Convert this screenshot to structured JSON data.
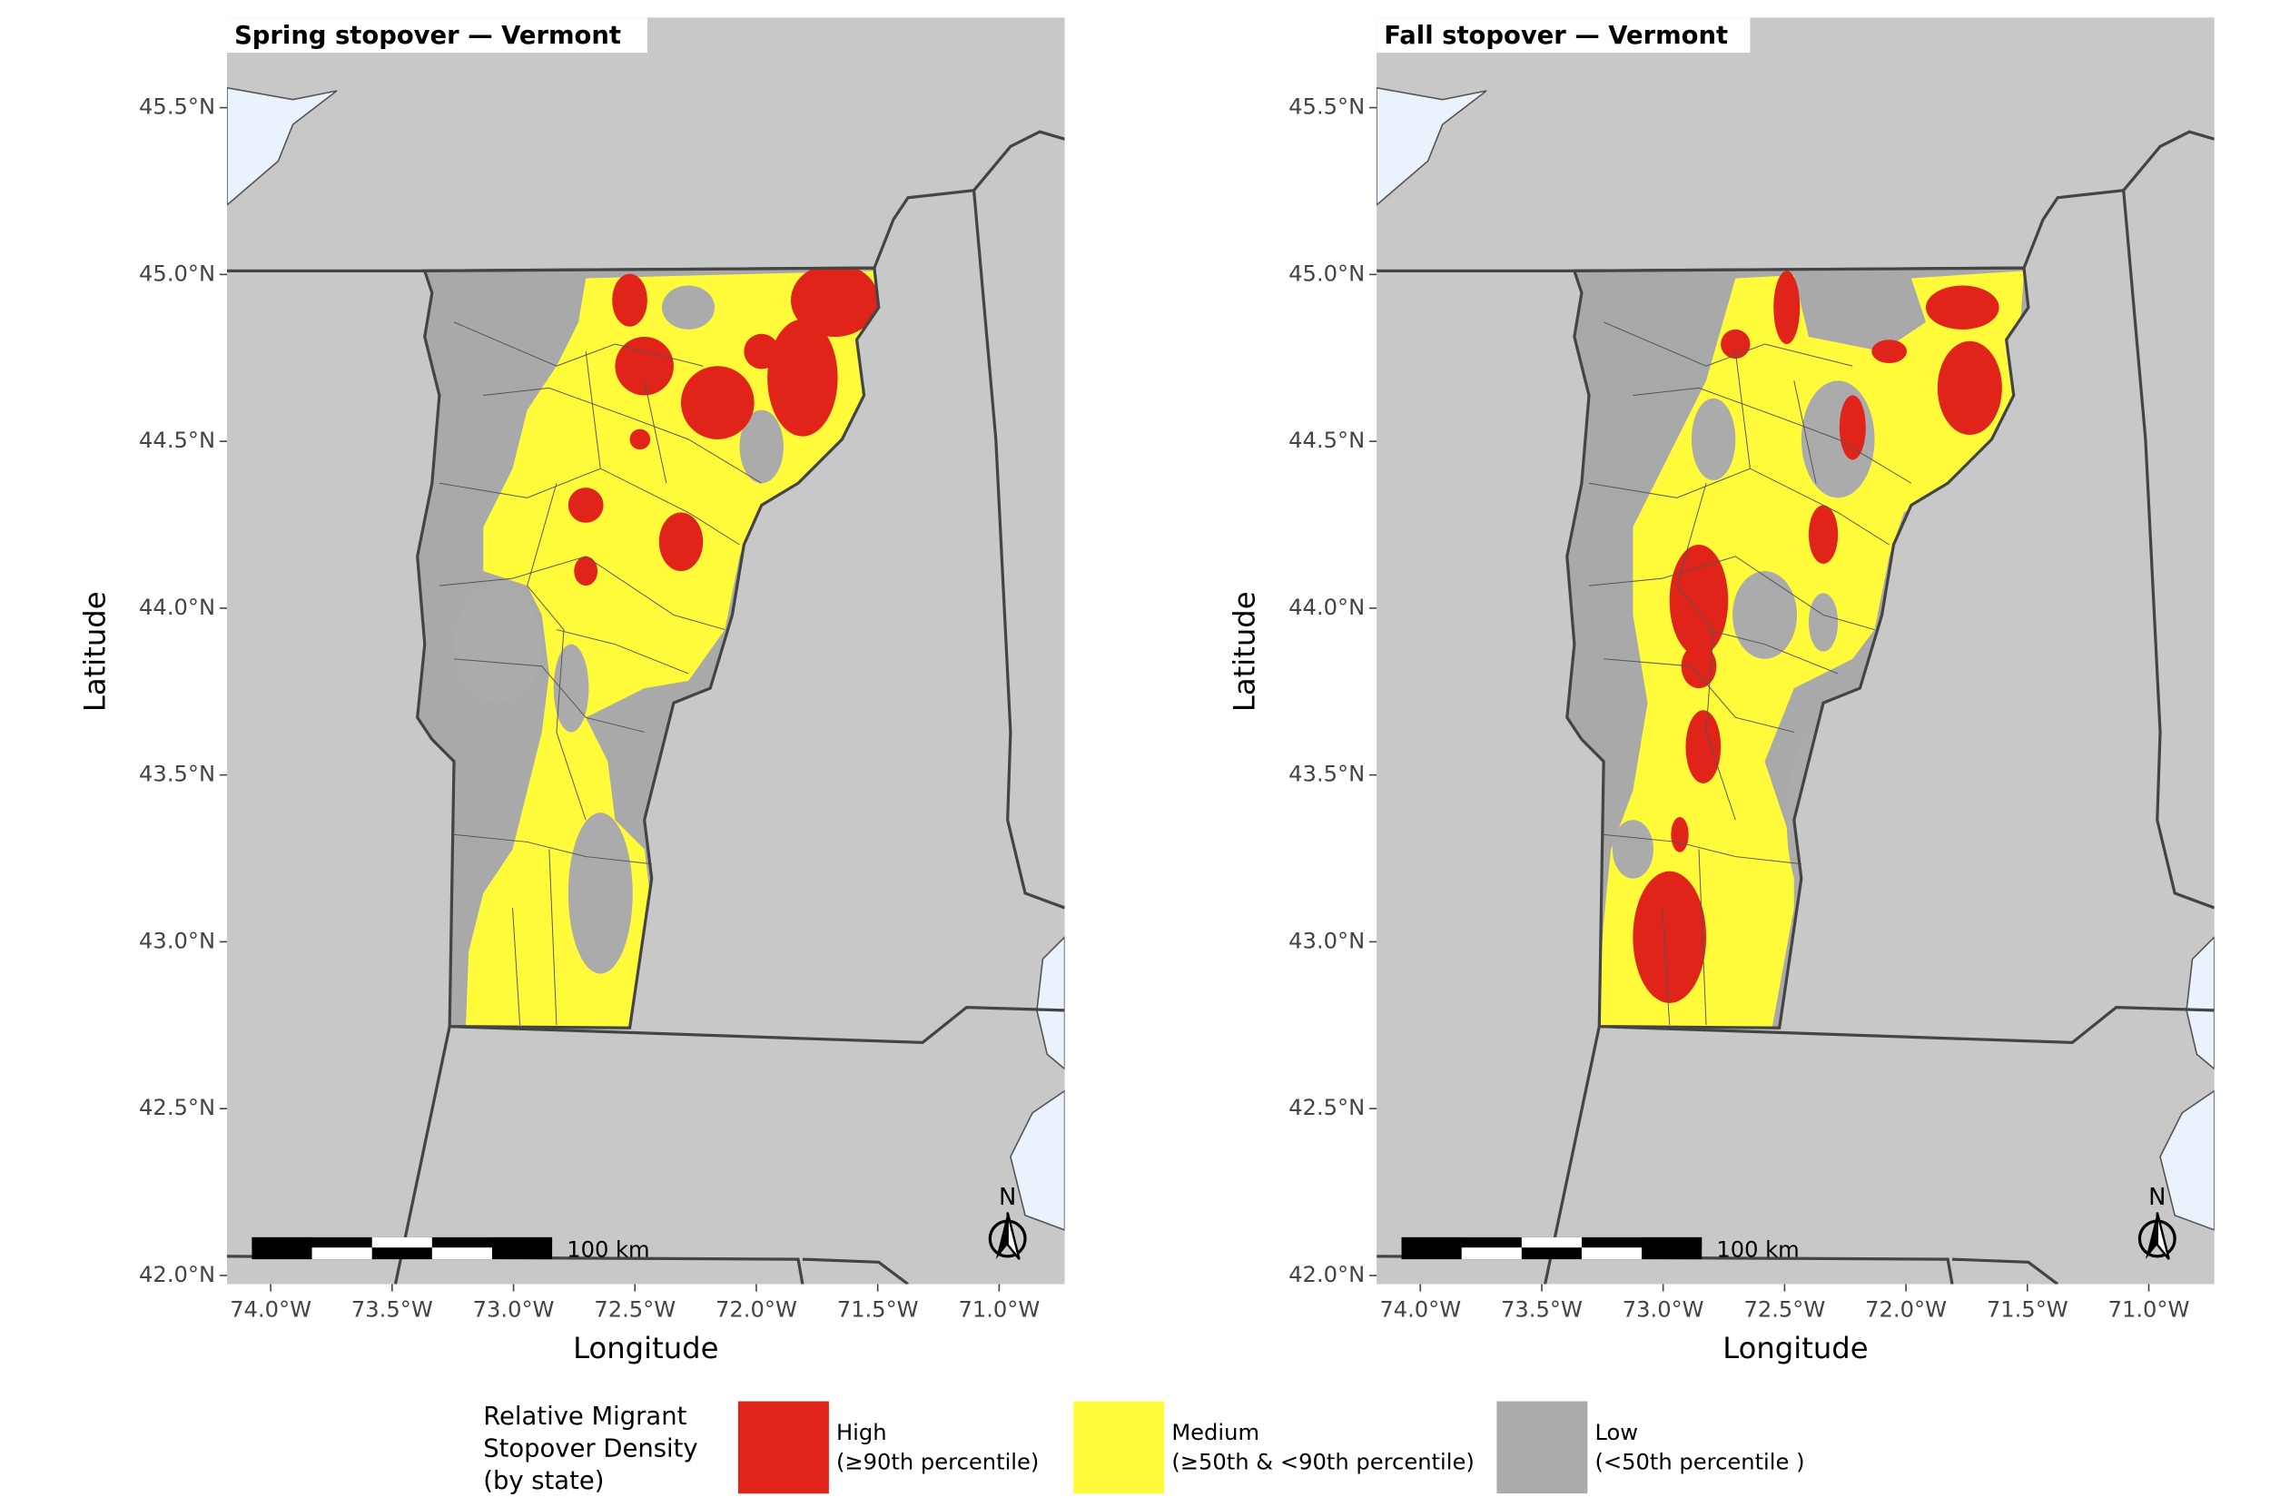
{
  "panels": [
    {
      "title": "Spring stopover — Vermont",
      "xlabel": "Longitude",
      "ylabel": "Latitude",
      "xlim": [
        -74.18,
        -70.73
      ],
      "ylim": [
        41.974,
        45.77
      ],
      "xticks": [
        {
          "value": -74.0,
          "label": "74.0°W"
        },
        {
          "value": -73.5,
          "label": "73.5°W"
        },
        {
          "value": -73.0,
          "label": "73.0°W"
        },
        {
          "value": -72.5,
          "label": "72.5°W"
        },
        {
          "value": -72.0,
          "label": "72.0°W"
        },
        {
          "value": -71.5,
          "label": "71.5°W"
        },
        {
          "value": -71.0,
          "label": "71.0°W"
        }
      ],
      "yticks": [
        {
          "value": 42.0,
          "label": "42.0°N"
        },
        {
          "value": 42.5,
          "label": "42.5°N"
        },
        {
          "value": 43.0,
          "label": "43.0°N"
        },
        {
          "value": 43.5,
          "label": "43.5°N"
        },
        {
          "value": 44.0,
          "label": "44.0°N"
        },
        {
          "value": 44.5,
          "label": "44.5°N"
        },
        {
          "value": 45.0,
          "label": "45.0°N"
        },
        {
          "value": 45.5,
          "label": "45.5°N"
        }
      ],
      "scale_bar": "100 km",
      "north": "N"
    },
    {
      "title": "Fall stopover — Vermont",
      "xlabel": "Longitude",
      "ylabel": "Latitude",
      "xlim": [
        -74.18,
        -70.73
      ],
      "ylim": [
        41.974,
        45.77
      ],
      "xticks": [
        {
          "value": -74.0,
          "label": "74.0°W"
        },
        {
          "value": -73.5,
          "label": "73.5°W"
        },
        {
          "value": -73.0,
          "label": "73.0°W"
        },
        {
          "value": -72.5,
          "label": "72.5°W"
        },
        {
          "value": -72.0,
          "label": "72.0°W"
        },
        {
          "value": -71.5,
          "label": "71.5°W"
        },
        {
          "value": -71.0,
          "label": "71.0°W"
        }
      ],
      "yticks": [
        {
          "value": 42.0,
          "label": "42.0°N"
        },
        {
          "value": 42.5,
          "label": "42.5°N"
        },
        {
          "value": 43.0,
          "label": "43.0°N"
        },
        {
          "value": 43.5,
          "label": "43.5°N"
        },
        {
          "value": 44.0,
          "label": "44.0°N"
        },
        {
          "value": 44.5,
          "label": "44.5°N"
        },
        {
          "value": 45.0,
          "label": "45.0°N"
        },
        {
          "value": 45.5,
          "label": "45.5°N"
        }
      ],
      "scale_bar": "100 km",
      "north": "N"
    }
  ],
  "legend": {
    "title": [
      "Relative Migrant",
      "Stopover Density",
      "(by state)"
    ],
    "items": [
      {
        "label": [
          "High",
          "(≥90th percentile)"
        ],
        "color": "#e0241a"
      },
      {
        "label": [
          "Medium",
          "(≥50th & <90th percentile)"
        ],
        "color": "#fffb3a"
      },
      {
        "label": [
          "Low",
          "(<50th percentile )"
        ],
        "color": "#ababab"
      }
    ]
  }
}
